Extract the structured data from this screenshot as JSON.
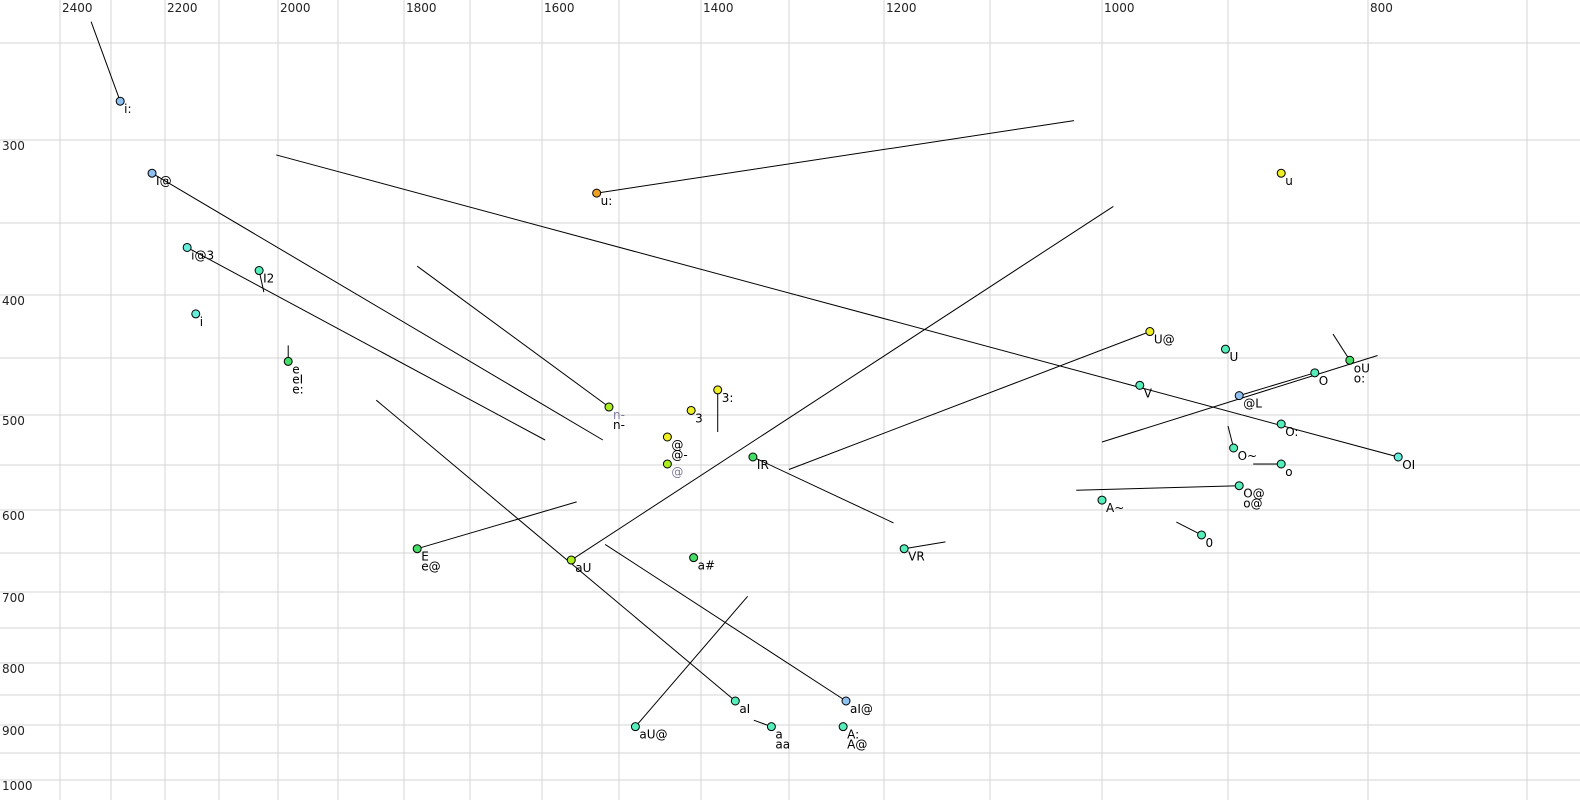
{
  "chart_data": {
    "type": "scatter",
    "title": "",
    "xlabel": "",
    "ylabel": "",
    "x_axis": {
      "reversed": true,
      "scale": "log-like",
      "tick_labels": [
        "2400",
        "2200",
        "2000",
        "1800",
        "1600",
        "1400",
        "1200",
        "1000",
        "800"
      ],
      "grid_step": 100
    },
    "y_axis": {
      "reversed": true,
      "scale": "log-like",
      "tick_labels": [
        "300",
        "400",
        "500",
        "600",
        "700",
        "800",
        "900",
        "1000"
      ],
      "grid_step": 50
    },
    "grid": true,
    "colors": {
      "light_blue": "#8ec0f0",
      "cyan": "#66eedd",
      "mint": "#55eebb",
      "green": "#44dd66",
      "lime": "#aaee22",
      "yellow": "#eeee22",
      "orange": "#f0a020",
      "gray_label": "#7a7a9a"
    },
    "points": [
      {
        "labels": [
          "i:"
        ],
        "x": 2283,
        "y": 280,
        "color": "light_blue",
        "to": [
          2339,
          239
        ]
      },
      {
        "labels": [
          "I@"
        ],
        "x": 2224,
        "y": 320,
        "color": "light_blue",
        "to": [
          1521,
          525
        ]
      },
      {
        "labels": [
          "i@3"
        ],
        "x": 2159,
        "y": 367,
        "color": "cyan",
        "to": [
          1596,
          525
        ]
      },
      {
        "labels": [
          "I2"
        ],
        "x": 2032,
        "y": 383,
        "color": "mint",
        "to": [
          2024,
          398
        ]
      },
      {
        "labels": [
          "i"
        ],
        "x": 2143,
        "y": 415,
        "color": "cyan"
      },
      {
        "labels": [
          "e",
          "eI",
          "e:"
        ],
        "x": 1983,
        "y": 453,
        "color": "green",
        "to": [
          1983,
          440
        ]
      },
      {
        "labels": [
          "u:"
        ],
        "x": 1529,
        "y": 332,
        "color": "orange",
        "to": [
          1025,
          290
        ]
      },
      {
        "labels": [
          "u"
        ],
        "x": 862,
        "y": 320,
        "color": "yellow"
      },
      {
        "labels": [
          "n-",
          "n-"
        ],
        "label_colors": [
          "gray_label",
          ""
        ],
        "x": 1513,
        "y": 493,
        "color": "lime",
        "to": [
          1780,
          380
        ]
      },
      {
        "labels": [
          "3:"
        ],
        "x": 1381,
        "y": 478,
        "color": "yellow",
        "to": [
          1381,
          517
        ]
      },
      {
        "labels": [
          "3"
        ],
        "x": 1412,
        "y": 496,
        "color": "yellow"
      },
      {
        "labels": [
          "@",
          "@-"
        ],
        "x": 1441,
        "y": 522,
        "color": "yellow"
      },
      {
        "labels": [
          "@"
        ],
        "label_colors": [
          "gray_label"
        ],
        "x": 1441,
        "y": 549,
        "color": "lime"
      },
      {
        "labels": [
          "IR"
        ],
        "x": 1341,
        "y": 542,
        "color": "green",
        "to": [
          1191,
          615
        ]
      },
      {
        "labels": [
          "aU"
        ],
        "x": 1562,
        "y": 659,
        "color": "lime",
        "to": [
          991,
          340
        ]
      },
      {
        "labels": [
          "a#"
        ],
        "x": 1409,
        "y": 656,
        "color": "green"
      },
      {
        "labels": [
          "E",
          "e@"
        ],
        "x": 1780,
        "y": 645,
        "color": "green",
        "to": [
          1555,
          591
        ]
      },
      {
        "labels": [
          "VR"
        ],
        "x": 1181,
        "y": 645,
        "color": "mint",
        "to": [
          1142,
          637
        ]
      },
      {
        "labels": [
          "U@"
        ],
        "x": 962,
        "y": 429,
        "color": "yellow",
        "to": [
          1300,
          555
        ]
      },
      {
        "labels": [
          "U"
        ],
        "x": 902,
        "y": 443,
        "color": "mint"
      },
      {
        "labels": [
          "V"
        ],
        "x": 970,
        "y": 474,
        "color": "mint"
      },
      {
        "labels": [
          "@L"
        ],
        "x": 892,
        "y": 483,
        "color": "light_blue",
        "to": [
          838,
          463
        ]
      },
      {
        "labels": [
          "O"
        ],
        "x": 838,
        "y": 463,
        "color": "mint"
      },
      {
        "labels": [
          "oU",
          "o:"
        ],
        "x": 813,
        "y": 452,
        "color": "green",
        "to": [
          825,
          431
        ]
      },
      {
        "labels": [
          "O:"
        ],
        "x": 862,
        "y": 509,
        "color": "mint"
      },
      {
        "labels": [
          "OI"
        ],
        "x": 781,
        "y": 542,
        "color": "cyan",
        "to": [
          2003,
          309
        ]
      },
      {
        "labels": [
          "O~"
        ],
        "x": 896,
        "y": 533,
        "color": "mint",
        "to": [
          900,
          511
        ]
      },
      {
        "labels": [
          "o"
        ],
        "x": 862,
        "y": 549,
        "color": "mint",
        "to": [
          882,
          549
        ]
      },
      {
        "labels": [
          "O@",
          "o@"
        ],
        "x": 892,
        "y": 573,
        "color": "mint",
        "to": [
          1023,
          578
        ]
      },
      {
        "labels": [
          "A~"
        ],
        "x": 1000,
        "y": 589,
        "color": "mint"
      },
      {
        "labels": [
          "0"
        ],
        "x": 921,
        "y": 629,
        "color": "mint",
        "to": [
          941,
          614
        ]
      },
      {
        "labels": [
          "aI"
        ],
        "x": 1361,
        "y": 860,
        "color": "mint",
        "to": [
          1842,
          487
        ]
      },
      {
        "labels": [
          "aI@"
        ],
        "x": 1240,
        "y": 860,
        "color": "light_blue",
        "to": [
          1518,
          640
        ]
      },
      {
        "labels": [
          "aU@"
        ],
        "x": 1480,
        "y": 903,
        "color": "mint",
        "to": [
          1347,
          706
        ]
      },
      {
        "labels": [
          "a",
          "aa"
        ],
        "x": 1320,
        "y": 903,
        "color": "mint",
        "to": [
          1340,
          892
        ]
      },
      {
        "labels": [
          "A:",
          "A@"
        ],
        "x": 1243,
        "y": 903,
        "color": "mint"
      }
    ],
    "segments": [
      {
        "from": [
          1000,
          527
        ],
        "to": [
          794,
          448
        ]
      }
    ]
  }
}
